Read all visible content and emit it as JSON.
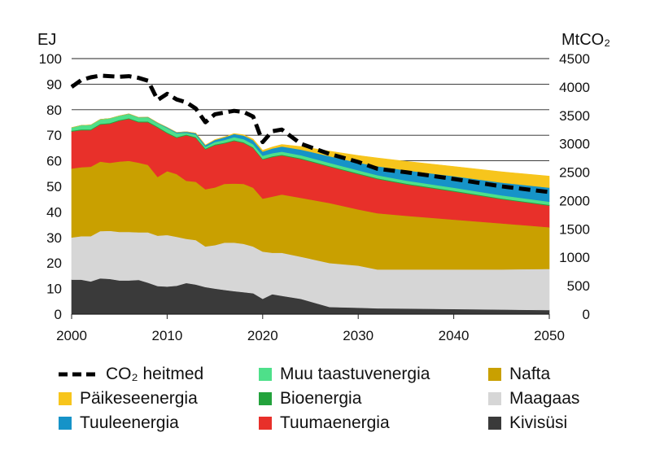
{
  "chart_data": {
    "type": "area",
    "y_left_unit": "EJ",
    "y_right_unit": "MtCO₂",
    "x_ticks": [
      "2000",
      "2010",
      "2020",
      "2030",
      "2040",
      "2050"
    ],
    "y_left_ticks": [
      "0",
      "10",
      "20",
      "30",
      "40",
      "50",
      "60",
      "70",
      "80",
      "90",
      "100"
    ],
    "y_right_ticks": [
      "0",
      "500",
      "1000",
      "1500",
      "2000",
      "2500",
      "3000",
      "3500",
      "4000",
      "4500"
    ],
    "xlim": [
      2000,
      2050
    ],
    "ylim_left": [
      0,
      100
    ],
    "ylim_right": [
      0,
      4500
    ],
    "grid": "horizontal",
    "x": [
      2000,
      2001,
      2002,
      2003,
      2004,
      2005,
      2006,
      2007,
      2008,
      2009,
      2010,
      2011,
      2012,
      2013,
      2014,
      2015,
      2016,
      2017,
      2018,
      2019,
      2020,
      2021,
      2022,
      2024,
      2027,
      2030,
      2032,
      2035,
      2040,
      2045,
      2050
    ],
    "series": [
      {
        "name": "Kivisüsi",
        "color": "#3a3a3a",
        "values": [
          13.5,
          13.5,
          12.8,
          14.0,
          13.8,
          13.2,
          13.2,
          13.4,
          12.3,
          11.0,
          10.8,
          11.1,
          12.2,
          11.6,
          10.6,
          10.0,
          9.5,
          9.0,
          8.6,
          8.2,
          6.0,
          7.8,
          7.2,
          6.0,
          2.8,
          2.5,
          2.3,
          2.2,
          2.0,
          1.8,
          1.6
        ]
      },
      {
        "name": "Maagaas",
        "color": "#d6d6d6",
        "values": [
          16.5,
          17.0,
          17.7,
          18.5,
          18.8,
          19.0,
          19.0,
          18.6,
          19.7,
          19.7,
          20.2,
          19.2,
          17.3,
          17.4,
          15.9,
          17.0,
          18.5,
          19.0,
          18.9,
          18.3,
          18.5,
          16.2,
          16.8,
          16.5,
          17.2,
          16.5,
          15.2,
          15.3,
          15.5,
          15.7,
          16.1
        ]
      },
      {
        "name": "Nafta",
        "color": "#c9a000",
        "values": [
          27.0,
          27.0,
          27.2,
          27.2,
          26.6,
          27.5,
          27.8,
          27.3,
          26.4,
          23.0,
          25.0,
          24.5,
          22.7,
          22.8,
          22.4,
          22.6,
          23.0,
          23.1,
          23.5,
          23.0,
          20.7,
          22.0,
          22.8,
          23.0,
          23.5,
          22.0,
          22.0,
          21.0,
          19.5,
          18.0,
          16.3
        ]
      },
      {
        "name": "Tuumaenergia",
        "color": "#e8302a",
        "values": [
          14.5,
          14.5,
          14.3,
          14.5,
          15.3,
          16.0,
          16.4,
          15.8,
          16.7,
          19.3,
          14.8,
          14.2,
          17.8,
          17.2,
          15.6,
          16.5,
          15.8,
          16.7,
          16.0,
          15.5,
          15.3,
          15.5,
          15.3,
          15.2,
          14.2,
          13.8,
          13.4,
          12.3,
          11.0,
          9.5,
          8.5
        ]
      },
      {
        "name": "Bioenergia",
        "color": "#23a23c",
        "values": [
          0.3,
          0.3,
          0.3,
          0.3,
          0.3,
          0.3,
          0.3,
          0.3,
          0.3,
          0.3,
          0.3,
          0.3,
          0.3,
          0.3,
          0.3,
          0.3,
          0.3,
          0.3,
          0.3,
          0.3,
          0.3,
          0.3,
          0.3,
          0.3,
          0.3,
          0.3,
          0.3,
          0.3,
          0.3,
          0.3,
          0.3
        ]
      },
      {
        "name": "Muu taastuvenergia",
        "color": "#4ee08a",
        "values": [
          1.2,
          1.6,
          1.7,
          1.7,
          1.8,
          1.6,
          1.6,
          1.5,
          1.6,
          1.4,
          1.7,
          1.5,
          0.7,
          1.0,
          0.7,
          1.0,
          1.1,
          1.2,
          1.2,
          1.2,
          1.2,
          1.2,
          1.2,
          1.2,
          1.2,
          1.2,
          1.2,
          1.2,
          1.2,
          1.2,
          1.2
        ]
      },
      {
        "name": "Tuuleenergia",
        "color": "#1693c8",
        "values": [
          0.0,
          0.0,
          0.0,
          0.0,
          0.0,
          0.0,
          0.1,
          0.1,
          0.1,
          0.2,
          0.3,
          0.3,
          0.4,
          0.5,
          0.6,
          0.8,
          1.0,
          1.2,
          1.4,
          1.6,
          1.6,
          1.8,
          2.0,
          2.2,
          2.6,
          3.0,
          3.5,
          4.0,
          4.5,
          5.0,
          5.5
        ]
      },
      {
        "name": "Päikeseenergia",
        "color": "#f7c51c",
        "values": [
          0.0,
          0.0,
          0.0,
          0.0,
          0.0,
          0.0,
          0.0,
          0.0,
          0.0,
          0.0,
          0.0,
          0.0,
          0.0,
          0.1,
          0.1,
          0.1,
          0.2,
          0.2,
          0.3,
          0.4,
          0.5,
          0.6,
          0.8,
          1.2,
          2.0,
          2.8,
          3.2,
          3.5,
          3.8,
          4.2,
          4.5
        ]
      }
    ],
    "line": {
      "name": "CO₂ heitmed",
      "axis": "right",
      "color": "#000000",
      "x": [
        2000,
        2001,
        2002,
        2003,
        2004,
        2005,
        2006,
        2007,
        2008,
        2009,
        2010,
        2011,
        2012,
        2013,
        2014,
        2015,
        2016,
        2017,
        2018,
        2019,
        2020,
        2021,
        2022,
        2024,
        2027,
        2030,
        2032,
        2035,
        2040,
        2045,
        2050
      ],
      "values": [
        4000,
        4120,
        4170,
        4200,
        4190,
        4180,
        4190,
        4160,
        4110,
        3770,
        3880,
        3780,
        3730,
        3620,
        3380,
        3520,
        3550,
        3580,
        3560,
        3480,
        3030,
        3220,
        3250,
        3000,
        2820,
        2680,
        2560,
        2500,
        2380,
        2250,
        2150
      ]
    },
    "legend_columns": [
      [
        "CO₂ heitmed",
        "Päikeseenergia",
        "Tuuleenergia"
      ],
      [
        "Muu taastuvenergia",
        "Bioenergia",
        "Tuumaenergia"
      ],
      [
        "Nafta",
        "Maagaas",
        "Kivisüsi"
      ]
    ],
    "legend_placement": "bottom"
  }
}
